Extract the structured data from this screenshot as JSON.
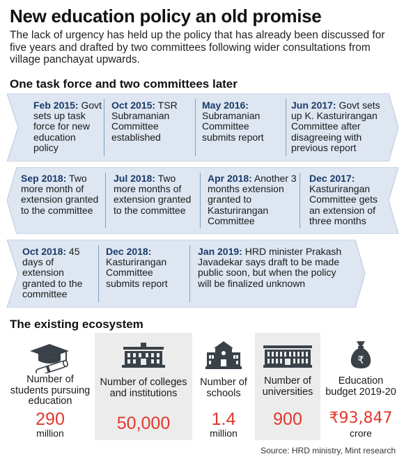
{
  "title": "New education policy an old promise",
  "subtitle": "The lack of urgency has held up the policy that has already been discussed for five years and drafted by two committees following wider consultations from village panchayat upwards.",
  "timeline": {
    "heading": "One task force and two committees later",
    "rows": [
      [
        {
          "date": "Feb 2015:",
          "text": " Govt sets up task force for new education policy"
        },
        {
          "date": "Oct 2015:",
          "text": " TSR Subramanian Committee established"
        },
        {
          "date": "May 2016:",
          "text": " Subramanian Committee submits report"
        },
        {
          "date": "Jun 2017:",
          "text": " Govt sets up K. Kasturirangan Committee after disagreeing with previous report"
        }
      ],
      [
        {
          "date": "Sep 2018:",
          "text": " Two more month of extension granted to the committee"
        },
        {
          "date": "Jul 2018:",
          "text": "  Two more months of extension granted to the committee"
        },
        {
          "date": "Apr 2018:",
          "text": " Another 3 months extension granted to Kasturirangan Committee"
        },
        {
          "date": "Dec 2017:",
          "text": " Kasturirangan Committee gets an extension of three months"
        }
      ],
      [
        {
          "date": "Oct 2018:",
          "text": " 45 days of extension granted to the committee"
        },
        {
          "date": "Dec 2018:",
          "text": " Kasturirangan Committee submits report"
        },
        {
          "date": "Jan 2019:",
          "text": " HRD minister Prakash Javadekar says draft to be made public soon, but when the policy will be finalized unknown"
        }
      ]
    ]
  },
  "ecosystem": {
    "heading": "The existing ecosystem",
    "items": [
      {
        "label": "Number of students pursuing education",
        "value": "290",
        "unit": "million",
        "icon": "graduation-cap-icon"
      },
      {
        "label": "Number of colleges and institutions",
        "value": "50,000",
        "unit": "",
        "icon": "college-building-icon"
      },
      {
        "label": "Number of schools",
        "value": "1.4",
        "unit": "million",
        "icon": "school-building-icon"
      },
      {
        "label": "Number of universities",
        "value": "900",
        "unit": "",
        "icon": "university-building-icon"
      },
      {
        "label": "Education budget 2019-20",
        "value": "₹93,847",
        "unit": "crore",
        "icon": "rupee-money-bag-icon"
      }
    ]
  },
  "source": "Source: HRD ministry, Mint research",
  "colors": {
    "band": "#dde6f1",
    "band_edge": "#7f9fc4",
    "date": "#1a3a6a",
    "value": "#e2372b",
    "shade": "#ececec"
  }
}
